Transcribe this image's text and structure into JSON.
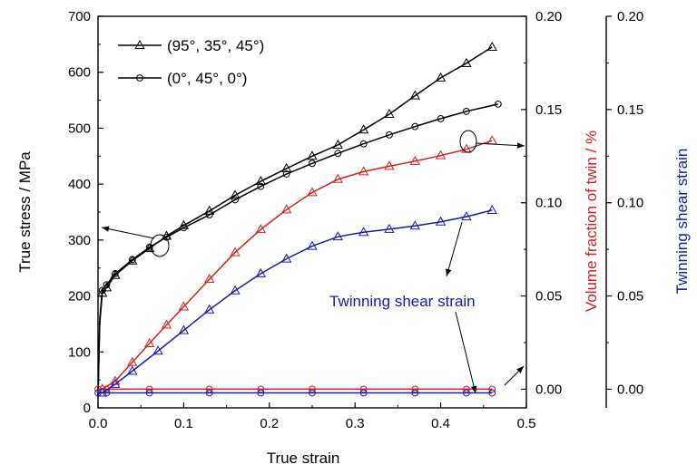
{
  "chart_data": {
    "type": "line",
    "xlabel": "True strain",
    "ylabel_left": "True stress / MPa",
    "ylabel_right1": "Volume fraction of twin / %",
    "ylabel_right2": "Twinning shear strain",
    "xlim": [
      0,
      0.5
    ],
    "ylim_left": [
      0,
      700
    ],
    "ylim_right": [
      -0.01,
      0.2
    ],
    "x_ticks": [
      "0.0",
      "0.1",
      "0.2",
      "0.3",
      "0.4",
      "0.5"
    ],
    "y_left_ticks": [
      "0",
      "100",
      "200",
      "300",
      "400",
      "500",
      "600",
      "700"
    ],
    "y_right1_ticks": [
      "0.00",
      "0.05",
      "0.10",
      "0.15",
      "0.20"
    ],
    "y_right2_ticks": [
      "0.00",
      "0.05",
      "0.10",
      "0.15",
      "0.20"
    ],
    "colors": {
      "stress": "#000000",
      "volume": "#d42020",
      "shear": "#1a1aa8"
    },
    "legend": [
      {
        "label": "(95°, 35°, 45°)",
        "marker": "triangle"
      },
      {
        "label": "(0°, 45°, 0°)",
        "marker": "circle"
      }
    ],
    "annotation": "Twinning shear strain",
    "series": [
      {
        "name": "(95°, 35°, 45°)",
        "axis": "left",
        "color": "black",
        "marker": "triangle",
        "x": [
          0,
          0.002,
          0.005,
          0.01,
          0.02,
          0.04,
          0.06,
          0.08,
          0.1,
          0.13,
          0.16,
          0.19,
          0.22,
          0.25,
          0.28,
          0.31,
          0.34,
          0.37,
          0.4,
          0.43,
          0.46
        ],
        "y": [
          20,
          150,
          205,
          215,
          237,
          263,
          285,
          307,
          326,
          352,
          380,
          405,
          428,
          450,
          470,
          497,
          525,
          558,
          590,
          616,
          645
        ]
      },
      {
        "name": "(0°, 45°, 0°)",
        "axis": "left",
        "color": "black",
        "marker": "circle",
        "x": [
          0,
          0.002,
          0.005,
          0.01,
          0.02,
          0.04,
          0.06,
          0.08,
          0.1,
          0.13,
          0.16,
          0.19,
          0.22,
          0.25,
          0.28,
          0.31,
          0.34,
          0.37,
          0.4,
          0.43,
          0.467
        ],
        "y": [
          20,
          160,
          210,
          220,
          240,
          265,
          287,
          305,
          322,
          345,
          372,
          396,
          418,
          437,
          455,
          472,
          488,
          503,
          517,
          530,
          543
        ]
      },
      {
        "name": "(95°, 35°, 45°)",
        "axis": "right1",
        "color": "red",
        "marker": "triangle",
        "x": [
          0.005,
          0.02,
          0.04,
          0.06,
          0.08,
          0.1,
          0.13,
          0.16,
          0.19,
          0.22,
          0.25,
          0.28,
          0.31,
          0.34,
          0.37,
          0.4,
          0.43,
          0.46
        ],
        "y": [
          0.0,
          0.0043,
          0.0144,
          0.0245,
          0.0345,
          0.0442,
          0.059,
          0.0733,
          0.0857,
          0.0963,
          0.1055,
          0.1126,
          0.1167,
          0.1196,
          0.1223,
          0.1253,
          0.1287,
          0.1333
        ]
      },
      {
        "name": "(0°, 45°, 0°)",
        "axis": "right1",
        "color": "red",
        "marker": "circle",
        "x": [
          0.0,
          0.01,
          0.06,
          0.13,
          0.19,
          0.25,
          0.31,
          0.37,
          0.43,
          0.46
        ],
        "y": [
          0.0,
          0.0,
          0.0,
          0.0,
          0.0,
          0.0,
          0.0,
          0.0,
          0.0,
          0.0
        ]
      },
      {
        "name": "(95°, 35°, 45°)",
        "axis": "right2",
        "color": "blue",
        "marker": "triangle",
        "x": [
          0.005,
          0.02,
          0.04,
          0.07,
          0.1,
          0.13,
          0.16,
          0.19,
          0.22,
          0.25,
          0.28,
          0.31,
          0.34,
          0.37,
          0.4,
          0.43,
          0.46
        ],
        "y": [
          -0.002,
          0.0027,
          0.0097,
          0.0205,
          0.0315,
          0.0426,
          0.0528,
          0.062,
          0.0699,
          0.0767,
          0.0818,
          0.0842,
          0.0858,
          0.0876,
          0.0898,
          0.0925,
          0.096
        ]
      },
      {
        "name": "(0°, 45°, 0°)",
        "axis": "right2",
        "color": "blue",
        "marker": "circle",
        "x": [
          0.0,
          0.01,
          0.06,
          0.13,
          0.19,
          0.25,
          0.31,
          0.37,
          0.43,
          0.46
        ],
        "y": [
          -0.002,
          -0.002,
          -0.002,
          -0.002,
          -0.002,
          -0.002,
          -0.002,
          -0.002,
          -0.002,
          -0.002
        ]
      }
    ]
  }
}
